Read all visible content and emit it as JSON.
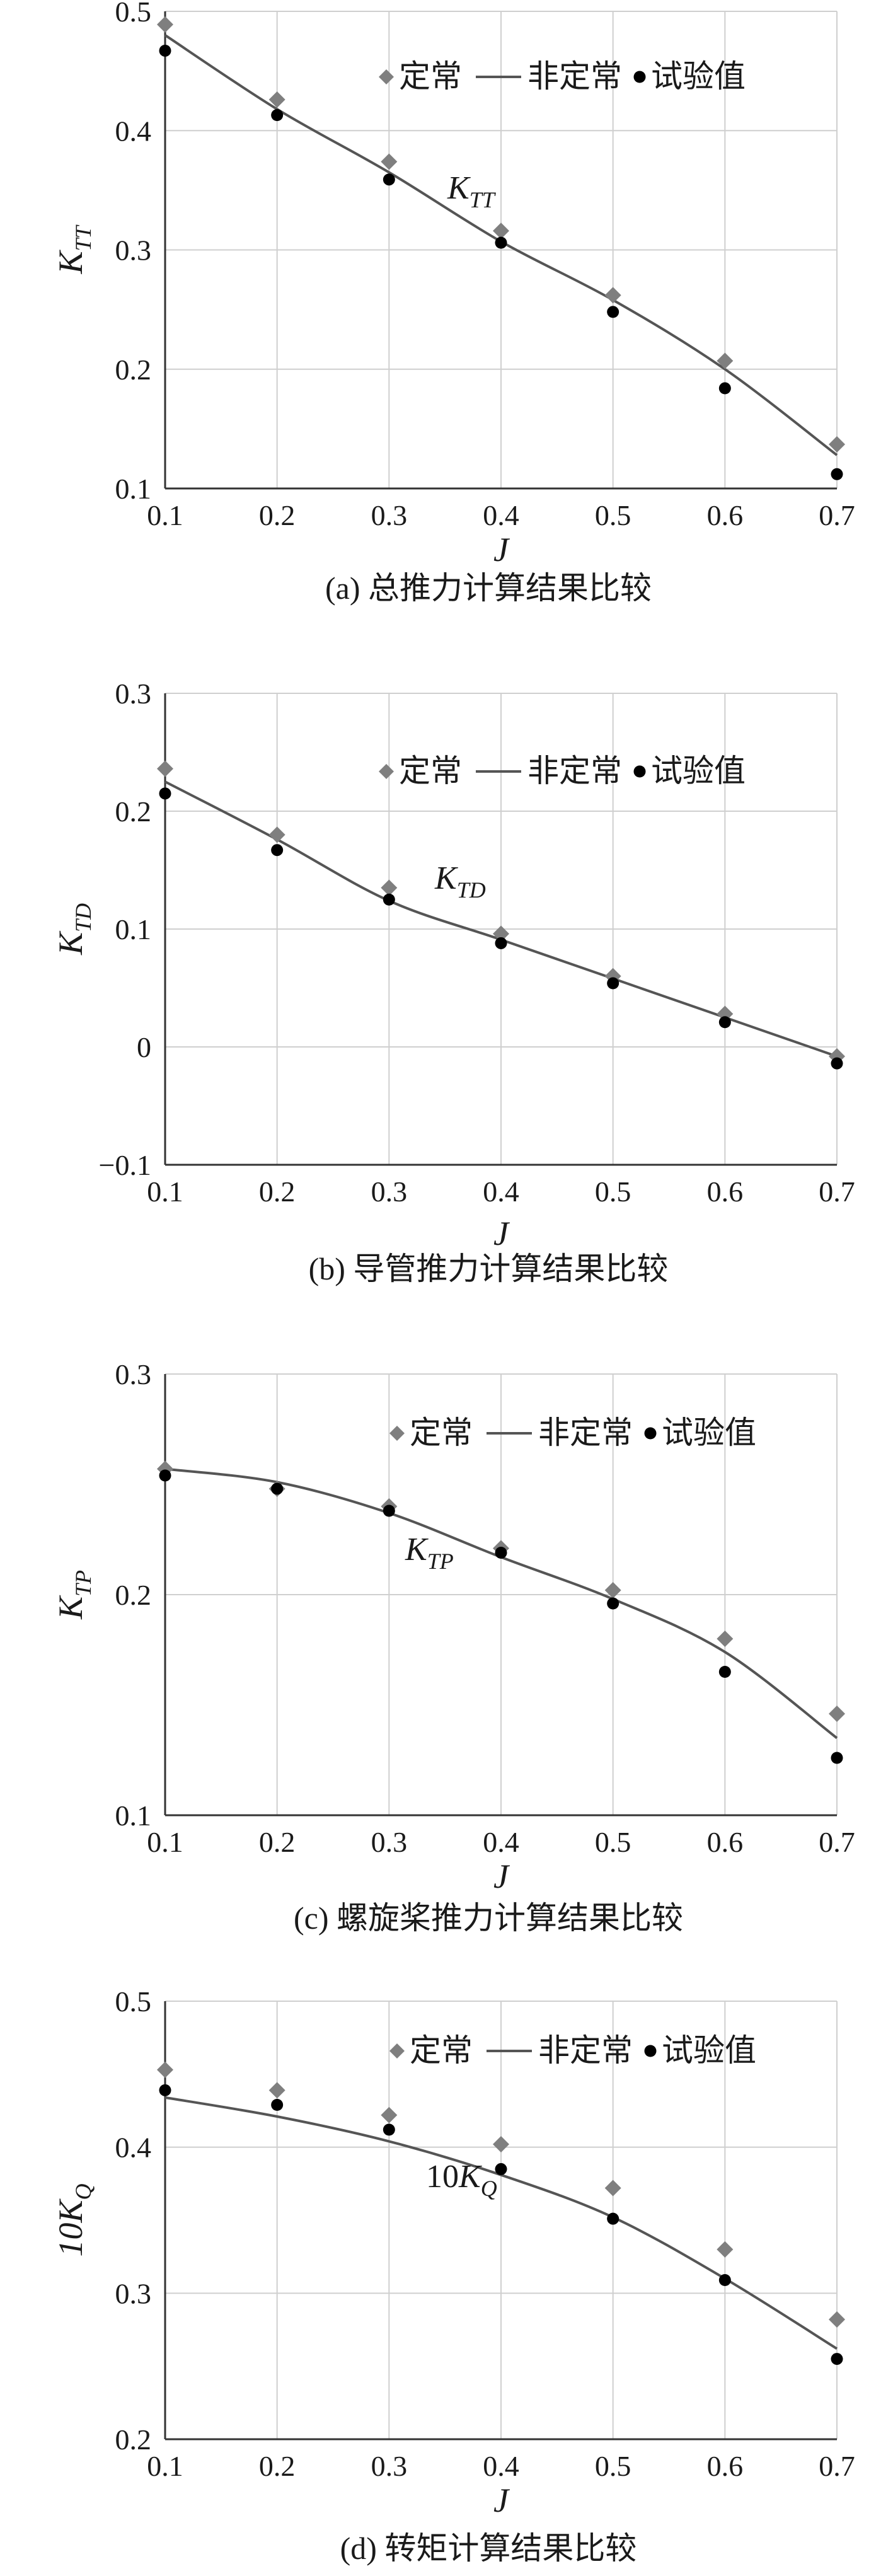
{
  "legend": {
    "steady": "定常",
    "unsteady": "非定常",
    "experiment": "试验值"
  },
  "colors": {
    "steady": "#7f7f7f",
    "unsteady": "#555555",
    "experiment": "#000000",
    "grid": "#cfcfcf",
    "axis": "#333333"
  },
  "chart_data": [
    {
      "type": "scatter",
      "caption": "(a) 总推力计算结果比较",
      "xlabel": "J",
      "ylabel": {
        "base": "K",
        "sub": "TT"
      },
      "annotation": {
        "base": "K",
        "sub": "TT"
      },
      "xlim": [
        0.1,
        0.7
      ],
      "ylim": [
        0.1,
        0.5
      ],
      "xticks": [
        "0.1",
        "0.2",
        "0.3",
        "0.4",
        "0.5",
        "0.6",
        "0.7"
      ],
      "yticks": [
        "0.1",
        "0.2",
        "0.3",
        "0.4",
        "0.5"
      ],
      "series": [
        {
          "name": "定常",
          "x": [
            0.1,
            0.2,
            0.3,
            0.4,
            0.5,
            0.6,
            0.7
          ],
          "y": [
            0.489,
            0.426,
            0.374,
            0.316,
            0.262,
            0.207,
            0.137
          ]
        },
        {
          "name": "非定常",
          "x": [
            0.1,
            0.2,
            0.3,
            0.4,
            0.5,
            0.6,
            0.7
          ],
          "y": [
            0.48,
            0.418,
            0.365,
            0.307,
            0.258,
            0.2,
            0.128
          ]
        },
        {
          "name": "试验值",
          "x": [
            0.1,
            0.2,
            0.3,
            0.4,
            0.5,
            0.6,
            0.7
          ],
          "y": [
            0.467,
            0.413,
            0.359,
            0.306,
            0.248,
            0.184,
            0.112
          ]
        }
      ]
    },
    {
      "type": "scatter",
      "caption": "(b) 导管推力计算结果比较",
      "xlabel": "J",
      "ylabel": {
        "base": "K",
        "sub": "TD"
      },
      "annotation": {
        "base": "K",
        "sub": "TD"
      },
      "xlim": [
        0.1,
        0.7
      ],
      "ylim": [
        -0.1,
        0.3
      ],
      "xticks": [
        "0.1",
        "0.2",
        "0.3",
        "0.4",
        "0.5",
        "0.6",
        "0.7"
      ],
      "yticks": [
        "−0.1",
        "0",
        "0.1",
        "0.2",
        "0.3"
      ],
      "series": [
        {
          "name": "定常",
          "x": [
            0.1,
            0.2,
            0.3,
            0.4,
            0.5,
            0.6,
            0.7
          ],
          "y": [
            0.236,
            0.18,
            0.135,
            0.096,
            0.06,
            0.028,
            -0.008
          ]
        },
        {
          "name": "非定常",
          "x": [
            0.1,
            0.2,
            0.3,
            0.4,
            0.5,
            0.6,
            0.7
          ],
          "y": [
            0.225,
            0.176,
            0.124,
            0.091,
            0.058,
            0.025,
            -0.008
          ]
        },
        {
          "name": "试验值",
          "x": [
            0.1,
            0.2,
            0.3,
            0.4,
            0.5,
            0.6,
            0.7
          ],
          "y": [
            0.215,
            0.167,
            0.125,
            0.088,
            0.054,
            0.021,
            -0.014
          ]
        }
      ]
    },
    {
      "type": "scatter",
      "caption": "(c) 螺旋桨推力计算结果比较",
      "xlabel": "J",
      "ylabel": {
        "base": "K",
        "sub": "TP"
      },
      "annotation": {
        "base": "K",
        "sub": "TP"
      },
      "xlim": [
        0.1,
        0.7
      ],
      "ylim": [
        0.1,
        0.3
      ],
      "xticks": [
        "0.1",
        "0.2",
        "0.3",
        "0.4",
        "0.5",
        "0.6",
        "0.7"
      ],
      "yticks": [
        "0.1",
        "0.2",
        "0.3"
      ],
      "series": [
        {
          "name": "定常",
          "x": [
            0.1,
            0.2,
            0.3,
            0.4,
            0.5,
            0.6,
            0.7
          ],
          "y": [
            0.257,
            0.248,
            0.24,
            0.221,
            0.202,
            0.18,
            0.146
          ]
        },
        {
          "name": "非定常",
          "x": [
            0.1,
            0.2,
            0.3,
            0.4,
            0.5,
            0.6,
            0.7
          ],
          "y": [
            0.257,
            0.251,
            0.237,
            0.217,
            0.198,
            0.174,
            0.135
          ]
        },
        {
          "name": "试验值",
          "x": [
            0.1,
            0.2,
            0.3,
            0.4,
            0.5,
            0.6,
            0.7
          ],
          "y": [
            0.254,
            0.248,
            0.238,
            0.219,
            0.196,
            0.165,
            0.126
          ]
        }
      ]
    },
    {
      "type": "scatter",
      "caption": "(d) 转矩计算结果比较",
      "xlabel": "J",
      "ylabel": {
        "base": "10K",
        "sub": "Q"
      },
      "annotation": {
        "base": "10K",
        "sub": "Q"
      },
      "xlim": [
        0.1,
        0.7
      ],
      "ylim": [
        0.2,
        0.5
      ],
      "xticks": [
        "0.1",
        "0.2",
        "0.3",
        "0.4",
        "0.5",
        "0.6",
        "0.7"
      ],
      "yticks": [
        "0.2",
        "0.3",
        "0.4",
        "0.5"
      ],
      "series": [
        {
          "name": "定常",
          "x": [
            0.1,
            0.2,
            0.3,
            0.4,
            0.5,
            0.6,
            0.7
          ],
          "y": [
            0.453,
            0.439,
            0.422,
            0.402,
            0.372,
            0.33,
            0.282
          ]
        },
        {
          "name": "非定常",
          "x": [
            0.1,
            0.2,
            0.3,
            0.4,
            0.5,
            0.6,
            0.7
          ],
          "y": [
            0.434,
            0.421,
            0.404,
            0.381,
            0.352,
            0.31,
            0.262
          ]
        },
        {
          "name": "试验值",
          "x": [
            0.1,
            0.2,
            0.3,
            0.4,
            0.5,
            0.6,
            0.7
          ],
          "y": [
            0.439,
            0.429,
            0.412,
            0.385,
            0.351,
            0.309,
            0.255
          ]
        }
      ]
    }
  ]
}
